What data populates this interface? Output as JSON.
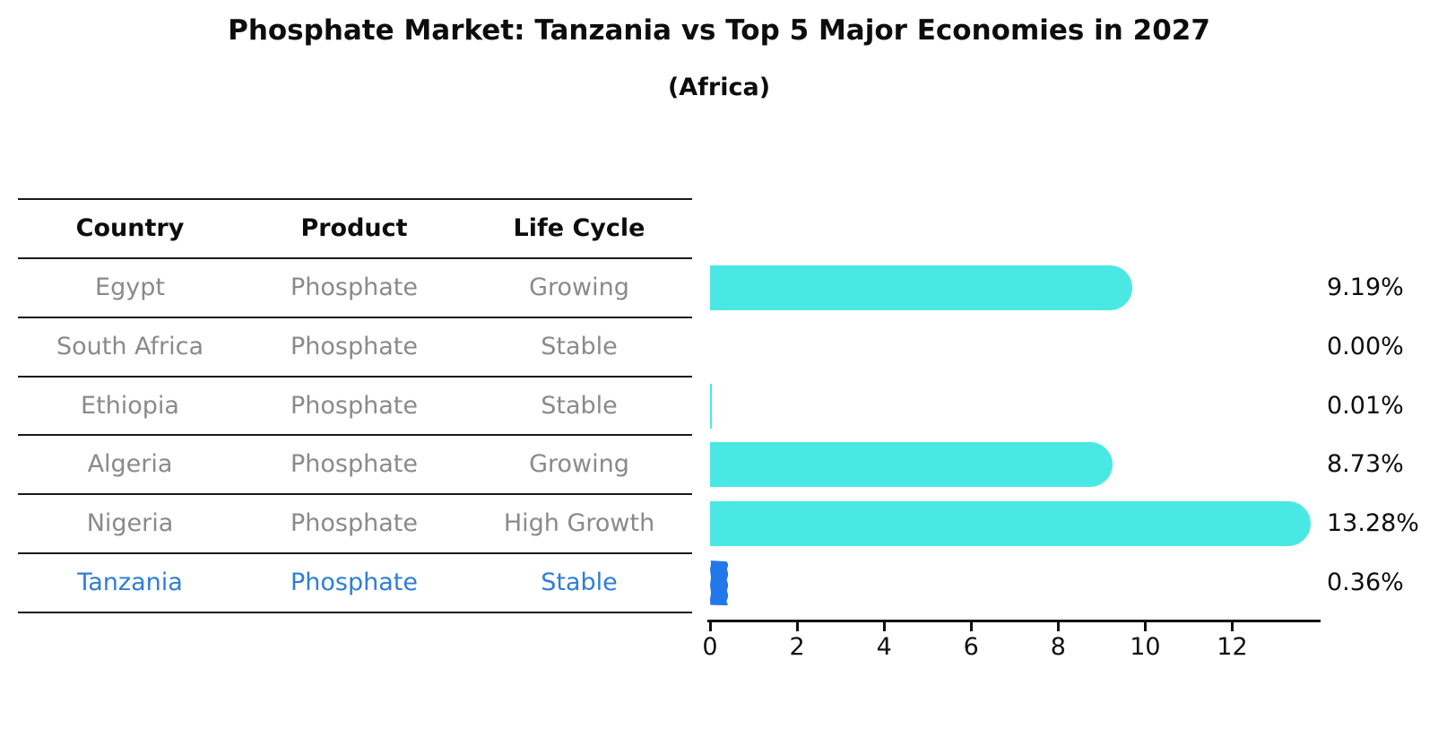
{
  "header": {
    "title": "Phosphate Market: Tanzania vs Top 5 Major Economies in 2027",
    "subtitle": "(Africa)"
  },
  "table": {
    "columns": [
      "Country",
      "Product",
      "Life Cycle"
    ],
    "rows": [
      {
        "country": "Egypt",
        "product": "Phosphate",
        "life_cycle": "Growing",
        "highlight": false
      },
      {
        "country": "South Africa",
        "product": "Phosphate",
        "life_cycle": "Stable",
        "highlight": false
      },
      {
        "country": "Ethiopia",
        "product": "Phosphate",
        "life_cycle": "Stable",
        "highlight": false
      },
      {
        "country": "Algeria",
        "product": "Phosphate",
        "life_cycle": "Growing",
        "highlight": false
      },
      {
        "country": "Nigeria",
        "product": "Phosphate",
        "life_cycle": "High Growth",
        "highlight": false
      },
      {
        "country": "Tanzania",
        "product": "Phosphate",
        "life_cycle": "Stable",
        "highlight": true
      }
    ]
  },
  "chart_data": {
    "type": "bar",
    "orientation": "horizontal",
    "title": "Phosphate Market: Tanzania vs Top 5 Major Economies in 2027",
    "subtitle": "(Africa)",
    "categories": [
      "Egypt",
      "South Africa",
      "Ethiopia",
      "Algeria",
      "Nigeria",
      "Tanzania"
    ],
    "values": [
      9.19,
      0.0,
      0.01,
      8.73,
      13.28,
      0.36
    ],
    "value_labels": [
      "9.19%",
      "0.00%",
      "0.01%",
      "8.73%",
      "13.28%",
      "0.36%"
    ],
    "xlabel": "",
    "ylabel": "",
    "xticks": [
      0,
      2,
      4,
      6,
      8,
      10,
      12
    ],
    "xlim": [
      0,
      14.1
    ],
    "grid": false,
    "legend": "none",
    "highlight_index": 5
  },
  "colors": {
    "bar_cyan": "#4AE8E4",
    "bar_blue": "#2078EB",
    "row_text_gray": "#8a8a8a",
    "highlight_text_blue": "#2E7ED6",
    "line_black": "#1a1a1a"
  }
}
